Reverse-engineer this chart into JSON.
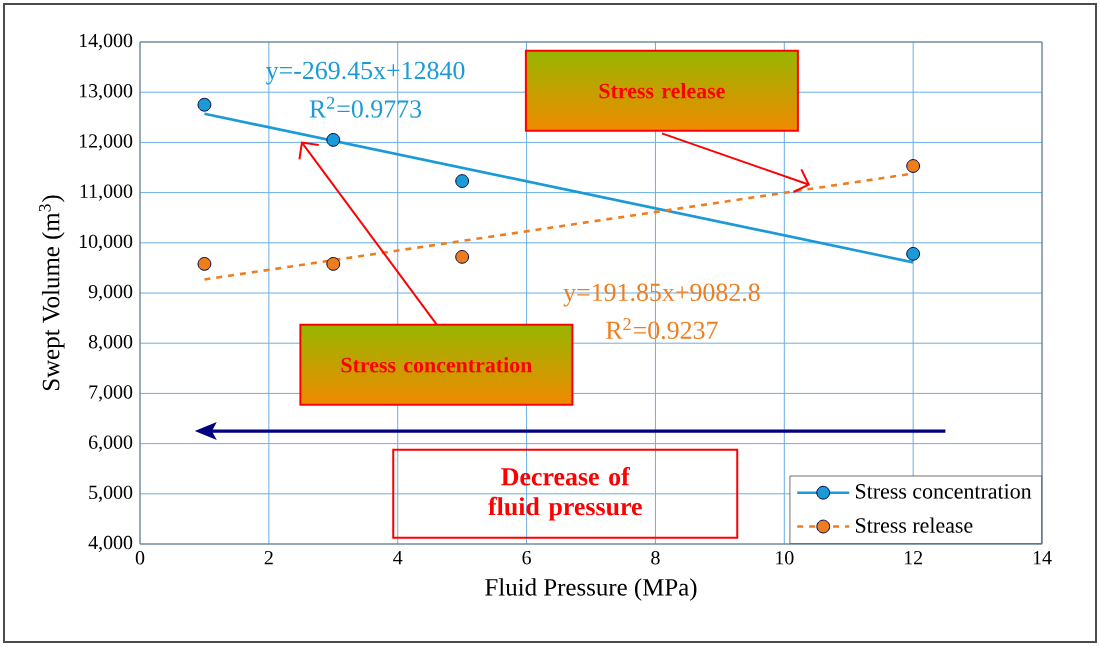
{
  "chart_data": {
    "type": "scatter",
    "xlabel": "Fluid Pressure (MPa)",
    "ylabel": "Swept Volume (m$^{3}$)",
    "xlim": [
      0,
      14
    ],
    "ylim": [
      4000,
      14000
    ],
    "xticks": [
      0,
      2,
      4,
      6,
      8,
      10,
      12,
      14
    ],
    "yticks": [
      {
        "value": 4000,
        "label": "4,000"
      },
      {
        "value": 5000,
        "label": "5,000"
      },
      {
        "value": 6000,
        "label": "6,000"
      },
      {
        "value": 7000,
        "label": "7,000"
      },
      {
        "value": 8000,
        "label": "8,000"
      },
      {
        "value": 9000,
        "label": "9,000"
      },
      {
        "value": 10000,
        "label": "10,000"
      },
      {
        "value": 11000,
        "label": "11,000"
      },
      {
        "value": 12000,
        "label": "12,000"
      },
      {
        "value": 13000,
        "label": "13,000"
      },
      {
        "value": 14000,
        "label": "14,000"
      }
    ],
    "grid": true,
    "legend": "bottom right",
    "series": [
      {
        "type": "line",
        "color": "#1a9ad6",
        "line_style": "solid",
        "marker": "none",
        "x": [
          1,
          12
        ],
        "values": [
          12570,
          9610
        ]
      },
      {
        "type": "line",
        "color": "#ee7d1e",
        "line_style": "dashed",
        "marker": "none",
        "x": [
          1,
          12
        ],
        "values": [
          9270,
          11380
        ]
      },
      {
        "name": "Stress concentration",
        "color": "#1a9ad6",
        "line_style": "solid",
        "marker": "circle",
        "x": [
          1,
          3,
          5,
          12
        ],
        "values": [
          12750,
          12050,
          11230,
          9780
        ]
      },
      {
        "name": "Stress release",
        "color": "#ee7d1e",
        "line_style": "dashed",
        "marker": "circle",
        "x": [
          1,
          3,
          5,
          12
        ],
        "values": [
          9580,
          9580,
          9720,
          11530
        ]
      }
    ],
    "annotations": [
      "y=-269.45x+12840",
      "R$^{2}$=0.9773",
      "Stress release",
      "y=191.85x+9082.8",
      "R$^{2}$=0.9237",
      "Stress concentration",
      "Decrease of fluid pressure"
    ]
  }
}
